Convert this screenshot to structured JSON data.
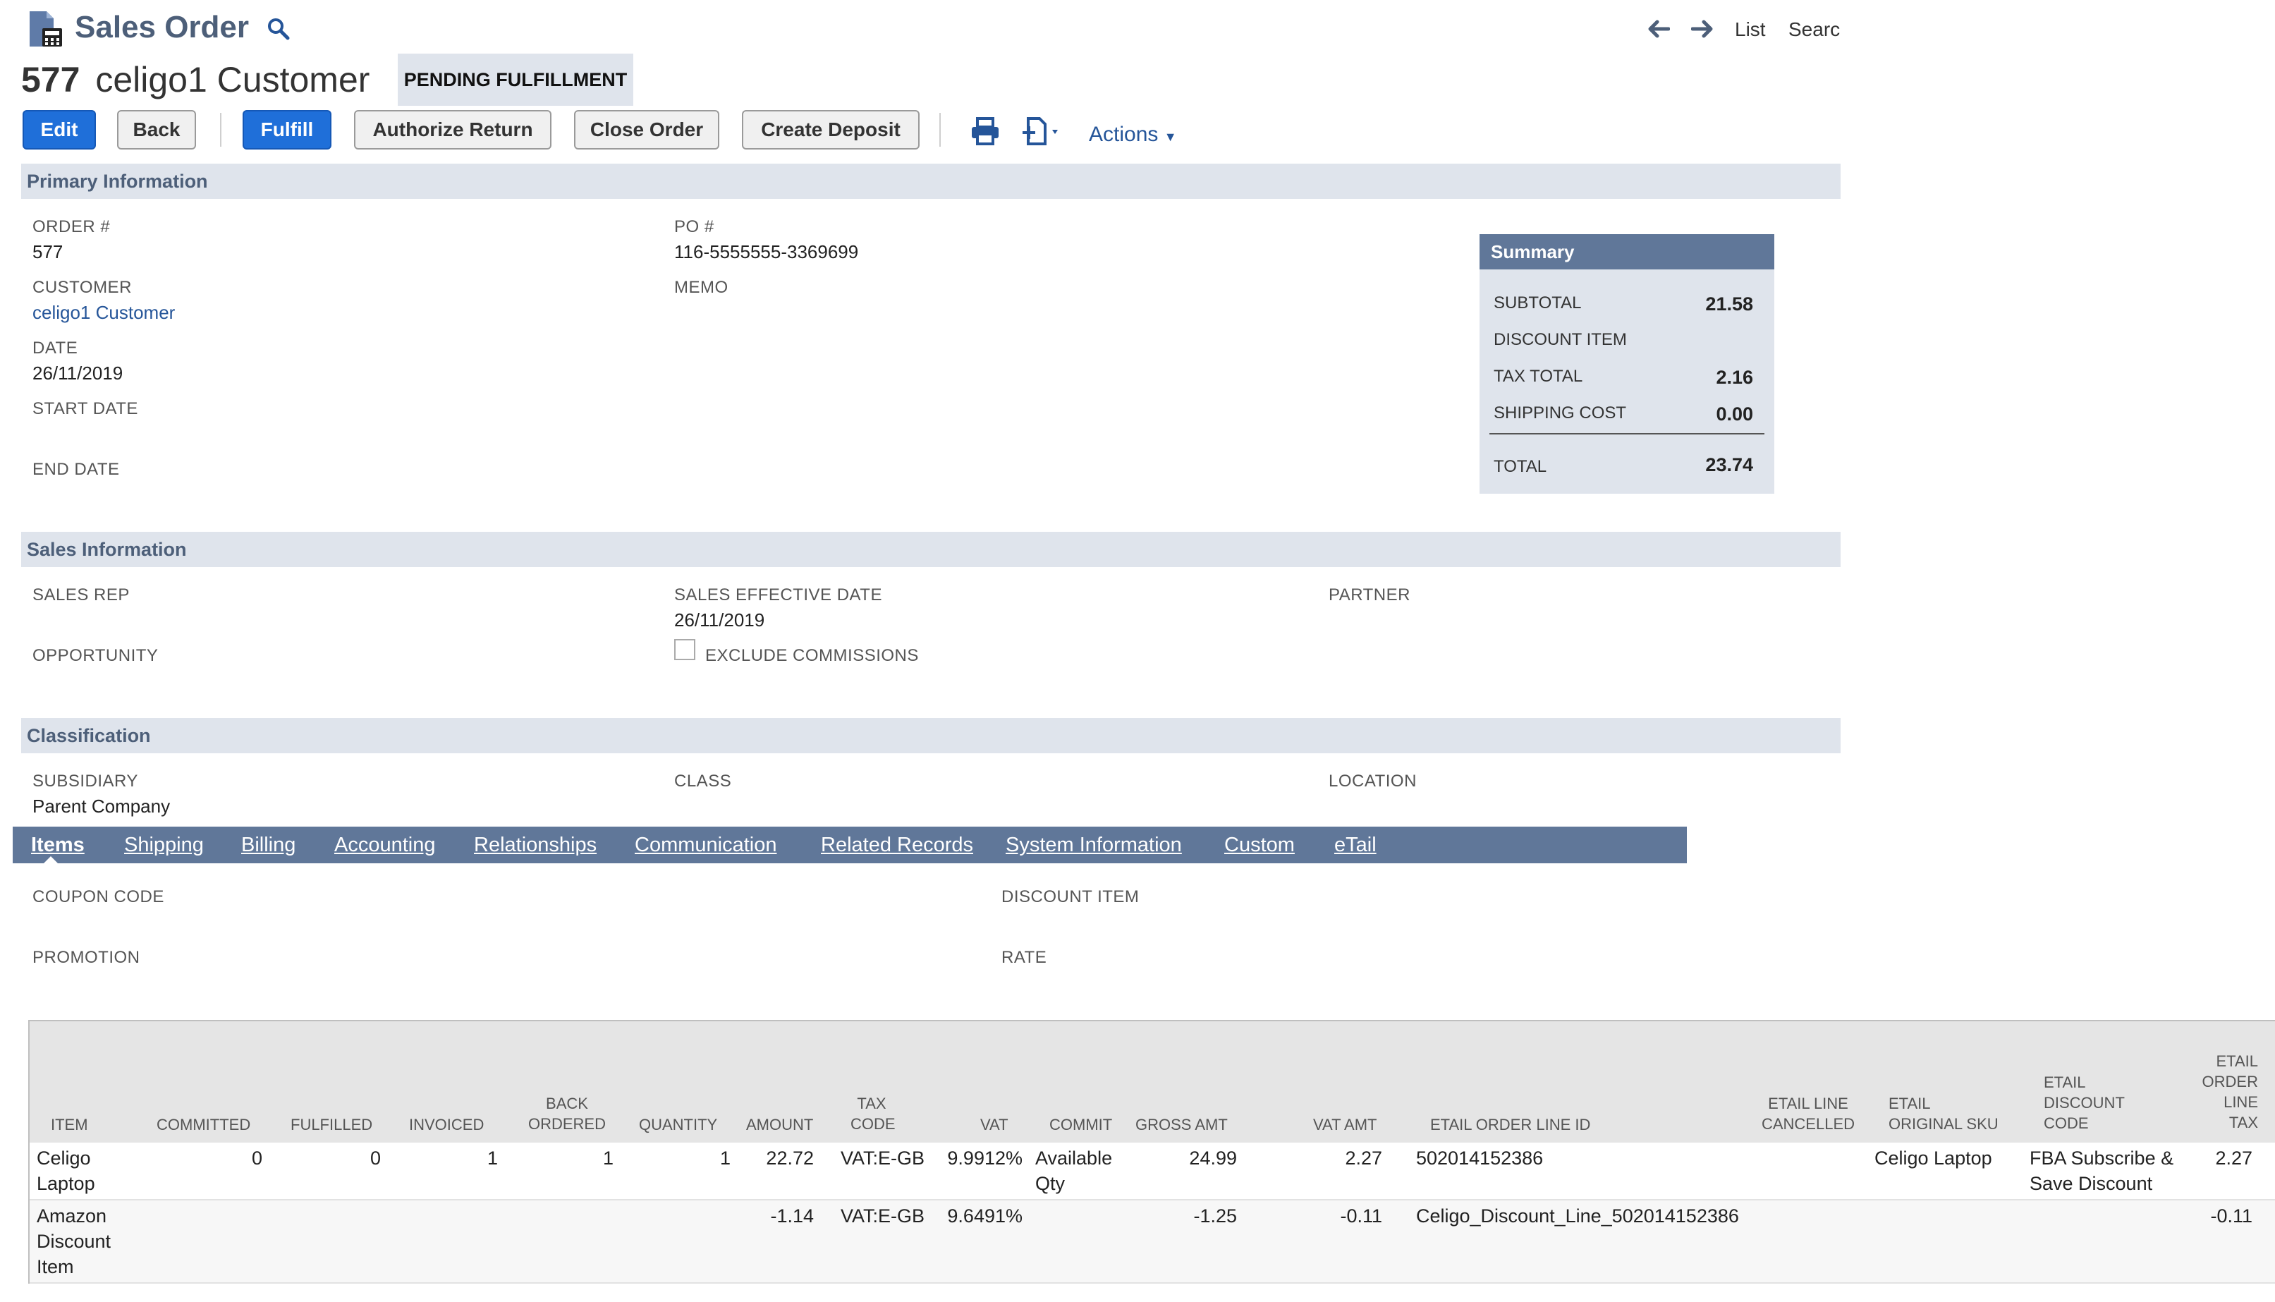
{
  "header": {
    "record_type": "Sales Order",
    "order_number": "577",
    "customer_title": "celigo1 Customer",
    "status": "PENDING FULFILLMENT",
    "nav_list": "List",
    "nav_search": "Searc"
  },
  "toolbar": {
    "edit": "Edit",
    "back": "Back",
    "fulfill": "Fulfill",
    "authorize_return": "Authorize Return",
    "close_order": "Close Order",
    "create_deposit": "Create Deposit",
    "actions": "Actions"
  },
  "primary": {
    "title": "Primary Information",
    "order_no_label": "ORDER #",
    "order_no": "577",
    "customer_label": "CUSTOMER",
    "customer": "celigo1 Customer",
    "date_label": "DATE",
    "date": "26/11/2019",
    "start_date_label": "START DATE",
    "end_date_label": "END DATE",
    "po_label": "PO #",
    "po": "116-5555555-3369699",
    "memo_label": "MEMO"
  },
  "summary": {
    "title": "Summary",
    "subtotal_label": "SUBTOTAL",
    "subtotal": "21.58",
    "discount_label": "DISCOUNT ITEM",
    "tax_label": "TAX TOTAL",
    "tax": "2.16",
    "shipping_label": "SHIPPING COST",
    "shipping": "0.00",
    "total_label": "TOTAL",
    "total": "23.74"
  },
  "sales": {
    "title": "Sales Information",
    "sales_rep_label": "SALES REP",
    "opportunity_label": "OPPORTUNITY",
    "effective_date_label": "SALES EFFECTIVE DATE",
    "effective_date": "26/11/2019",
    "exclude_label": "EXCLUDE COMMISSIONS",
    "partner_label": "PARTNER"
  },
  "classification": {
    "title": "Classification",
    "subsidiary_label": "SUBSIDIARY",
    "subsidiary": "Parent Company",
    "class_label": "CLASS",
    "location_label": "LOCATION"
  },
  "tabs": [
    "Items",
    "Shipping",
    "Billing",
    "Accounting",
    "Relationships",
    "Communication",
    "Related Records",
    "System Information",
    "Custom",
    "eTail"
  ],
  "items_tab": {
    "coupon_label": "COUPON CODE",
    "promotion_label": "PROMOTION",
    "discount_item_label": "DISCOUNT ITEM",
    "rate_label": "RATE"
  },
  "grid": {
    "headers": {
      "item": "ITEM",
      "committed": "COMMITTED",
      "fulfilled": "FULFILLED",
      "invoiced": "INVOICED",
      "back_ordered_1": "BACK",
      "back_ordered_2": "ORDERED",
      "quantity": "QUANTITY",
      "amount": "AMOUNT",
      "tax_code_1": "TAX",
      "tax_code_2": "CODE",
      "vat": "VAT",
      "commit": "COMMIT",
      "gross_amt": "GROSS AMT",
      "vat_amt": "VAT AMT",
      "etail_order_line_id": "ETAIL ORDER LINE ID",
      "etail_line_cancelled_1": "ETAIL LINE",
      "etail_line_cancelled_2": "CANCELLED",
      "etail_original_sku_1": "ETAIL",
      "etail_original_sku_2": "ORIGINAL SKU",
      "etail_discount_code_1": "ETAIL",
      "etail_discount_code_2": "DISCOUNT",
      "etail_discount_code_3": "CODE",
      "etail_order_line_tax_1": "ETAIL",
      "etail_order_line_tax_2": "ORDER",
      "etail_order_line_tax_3": "LINE",
      "etail_order_line_tax_4": "TAX"
    },
    "rows": [
      {
        "item_1": "Celigo",
        "item_2": "Laptop",
        "item_3": "",
        "committed": "0",
        "fulfilled": "0",
        "invoiced": "1",
        "back_ordered": "1",
        "quantity": "1",
        "amount": "22.72",
        "tax_code": "VAT:E-GB",
        "vat": "9.9912%",
        "commit_1": "Available",
        "commit_2": "Qty",
        "gross_amt": "24.99",
        "vat_amt": "2.27",
        "etail_order_line_id": "502014152386",
        "etail_original_sku": "Celigo Laptop",
        "etail_discount_code_1": "FBA Subscribe &",
        "etail_discount_code_2": "Save Discount",
        "etail_order_line_tax": "2.27"
      },
      {
        "item_1": "Amazon",
        "item_2": "Discount",
        "item_3": "Item",
        "committed": "",
        "fulfilled": "",
        "invoiced": "",
        "back_ordered": "",
        "quantity": "",
        "amount": "-1.14",
        "tax_code": "VAT:E-GB",
        "vat": "9.6491%",
        "commit_1": "",
        "commit_2": "",
        "gross_amt": "-1.25",
        "vat_amt": "-0.11",
        "etail_order_line_id": "Celigo_Discount_Line_502014152386",
        "etail_original_sku": "",
        "etail_discount_code_1": "",
        "etail_discount_code_2": "",
        "etail_order_line_tax": "-0.11"
      }
    ]
  },
  "colors": {
    "primary_button": "#1f6fd9",
    "section_bar": "#dfe4ec",
    "tab_bar": "#607799",
    "link": "#255599"
  }
}
